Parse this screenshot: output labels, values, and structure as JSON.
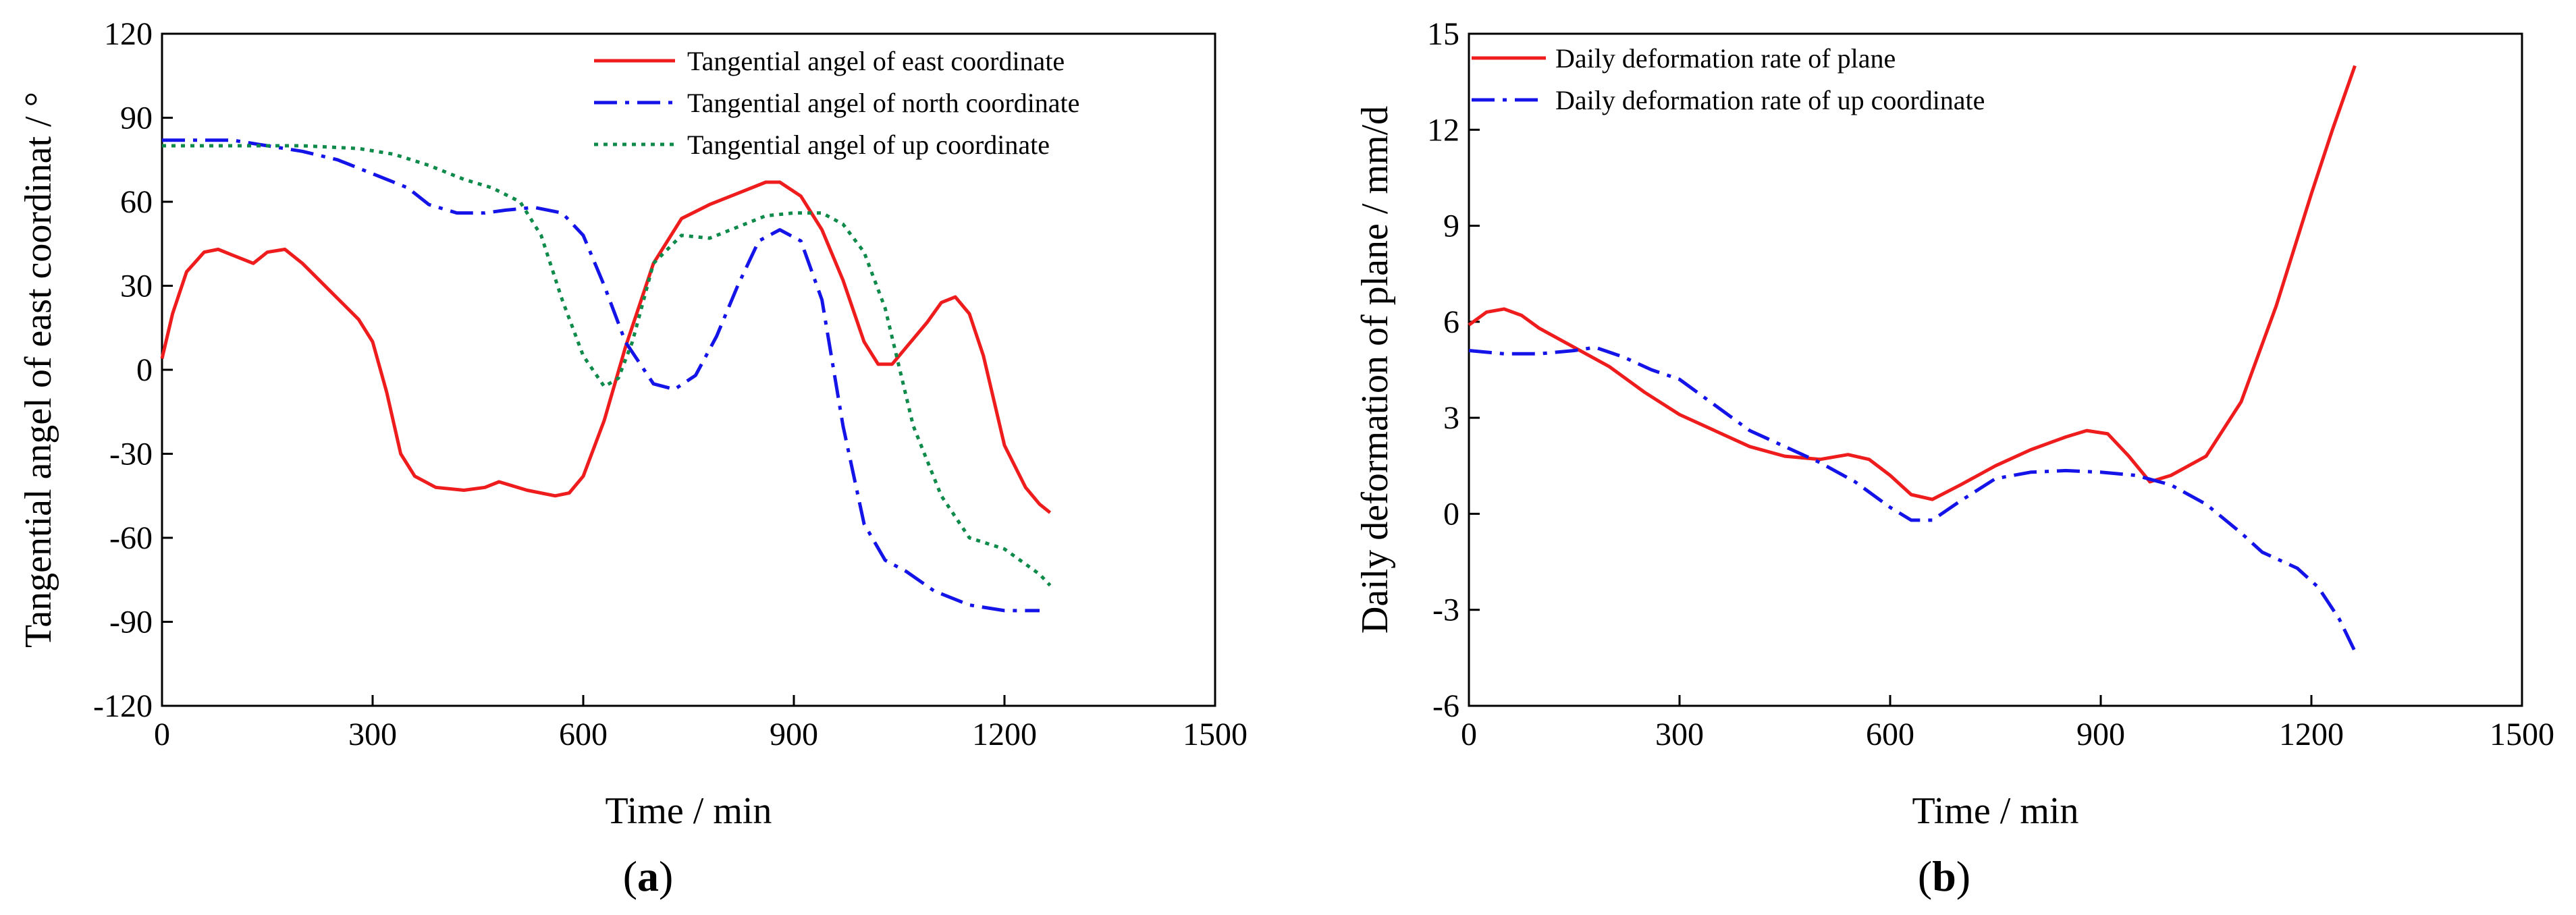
{
  "chart_data": [
    {
      "type": "line",
      "panel_label": {
        "open": "(",
        "letter": "a",
        "close": ")"
      },
      "xlabel": "Time / min",
      "ylabel": "Tangential angel of east coordinat / °",
      "xlim": [
        0,
        1500
      ],
      "ylim": [
        -120,
        120
      ],
      "xticks": [
        0,
        300,
        600,
        900,
        1200,
        1500
      ],
      "yticks": [
        -120,
        -90,
        -60,
        -30,
        0,
        30,
        60,
        90,
        120
      ],
      "legend_position": "top-right",
      "series": [
        {
          "name": "Tangential angel of east coordinate",
          "color": "#ee1c1c",
          "style": "solid",
          "x": [
            0,
            15,
            35,
            60,
            80,
            100,
            130,
            150,
            175,
            200,
            240,
            280,
            300,
            320,
            340,
            360,
            390,
            430,
            460,
            480,
            520,
            560,
            580,
            600,
            630,
            660,
            700,
            740,
            780,
            820,
            860,
            880,
            910,
            940,
            970,
            1000,
            1020,
            1040,
            1060,
            1090,
            1110,
            1130,
            1150,
            1170,
            1200,
            1230,
            1250,
            1265
          ],
          "values": [
            4,
            20,
            35,
            42,
            43,
            41,
            38,
            42,
            43,
            38,
            28,
            18,
            10,
            -8,
            -30,
            -38,
            -42,
            -43,
            -42,
            -40,
            -43,
            -45,
            -44,
            -38,
            -18,
            8,
            38,
            54,
            59,
            63,
            67,
            67,
            62,
            50,
            32,
            10,
            2,
            2,
            8,
            17,
            24,
            26,
            20,
            5,
            -27,
            -42,
            -48,
            -51
          ]
        },
        {
          "name": "Tangential angel of north coordinate",
          "color": "#1414e8",
          "style": "dashdot",
          "x": [
            0,
            50,
            100,
            150,
            200,
            250,
            300,
            350,
            380,
            420,
            460,
            490,
            530,
            570,
            600,
            630,
            660,
            700,
            730,
            760,
            790,
            820,
            850,
            880,
            910,
            940,
            970,
            1000,
            1030,
            1060,
            1100,
            1150,
            1200,
            1250
          ],
          "values": [
            82,
            82,
            82,
            80,
            78,
            75,
            70,
            65,
            59,
            56,
            56,
            57,
            58,
            56,
            48,
            30,
            10,
            -5,
            -7,
            -2,
            12,
            30,
            46,
            50,
            46,
            25,
            -20,
            -55,
            -68,
            -72,
            -79,
            -84,
            -86,
            -86
          ]
        },
        {
          "name": "Tangential angel of up coordinate",
          "color": "#0e8a4a",
          "style": "dotted",
          "x": [
            0,
            100,
            200,
            280,
            330,
            380,
            430,
            470,
            510,
            540,
            570,
            600,
            630,
            650,
            670,
            700,
            740,
            780,
            820,
            860,
            900,
            940,
            970,
            1000,
            1030,
            1070,
            1110,
            1150,
            1200,
            1250,
            1265
          ],
          "values": [
            80,
            80,
            80,
            79,
            77,
            73,
            68,
            65,
            60,
            48,
            25,
            5,
            -6,
            -3,
            10,
            38,
            48,
            47,
            51,
            55,
            56,
            56,
            52,
            42,
            22,
            -20,
            -45,
            -60,
            -64,
            -73,
            -77
          ]
        }
      ]
    },
    {
      "type": "line",
      "panel_label": {
        "open": "(",
        "letter": "b",
        "close": ")"
      },
      "xlabel": "Time / min",
      "ylabel": "Daily deformation of plane / mm/d",
      "xlim": [
        0,
        1500
      ],
      "ylim": [
        -6,
        15
      ],
      "xticks": [
        0,
        300,
        600,
        900,
        1200,
        1500
      ],
      "yticks": [
        -6,
        -3,
        0,
        3,
        6,
        9,
        12,
        15
      ],
      "legend_position": "top-left",
      "series": [
        {
          "name": "Daily deformation rate of plane",
          "color": "#ee1c1c",
          "style": "solid",
          "x": [
            0,
            25,
            50,
            75,
            100,
            150,
            200,
            250,
            300,
            350,
            400,
            450,
            500,
            540,
            570,
            600,
            630,
            660,
            700,
            750,
            800,
            850,
            880,
            910,
            940,
            970,
            1000,
            1050,
            1100,
            1150,
            1200,
            1230,
            1262
          ],
          "values": [
            5.9,
            6.3,
            6.4,
            6.2,
            5.8,
            5.2,
            4.6,
            3.8,
            3.1,
            2.6,
            2.1,
            1.8,
            1.7,
            1.85,
            1.7,
            1.2,
            0.6,
            0.45,
            0.9,
            1.5,
            2.0,
            2.4,
            2.6,
            2.5,
            1.8,
            1.0,
            1.2,
            1.8,
            3.5,
            6.5,
            10.0,
            12.0,
            14.0
          ]
        },
        {
          "name": "Daily deformation rate of up coordinate",
          "color": "#1414e8",
          "style": "dashdot",
          "x": [
            0,
            50,
            100,
            150,
            180,
            220,
            260,
            300,
            350,
            400,
            450,
            500,
            550,
            600,
            630,
            660,
            700,
            750,
            800,
            850,
            900,
            950,
            1000,
            1050,
            1100,
            1130,
            1180,
            1210,
            1240,
            1262
          ],
          "values": [
            5.1,
            5.0,
            5.0,
            5.1,
            5.2,
            4.9,
            4.5,
            4.2,
            3.4,
            2.6,
            2.1,
            1.6,
            1.0,
            0.2,
            -0.2,
            -0.2,
            0.4,
            1.1,
            1.3,
            1.35,
            1.3,
            1.2,
            0.9,
            0.3,
            -0.6,
            -1.2,
            -1.7,
            -2.3,
            -3.3,
            -4.3
          ]
        }
      ]
    }
  ]
}
